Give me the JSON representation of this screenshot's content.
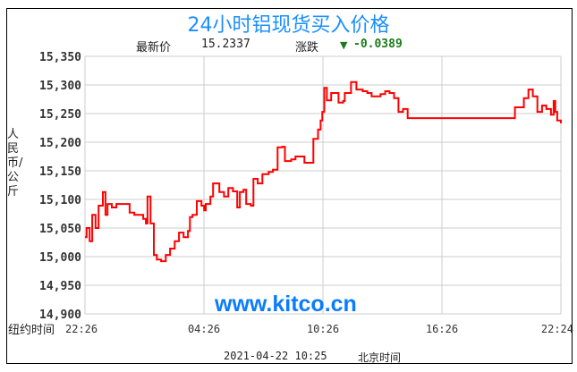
{
  "header": {
    "title": "24小时铝现货买入价格",
    "latest_label": "最新价",
    "latest_value": "15.2337",
    "change_label": "涨跌",
    "change_icon": "triangle-down-icon",
    "change_value": "-0.0389",
    "change_color": "#1a7a1a"
  },
  "footer": {
    "timestamp": "2021-04-22 10:25",
    "timezone": "北京时间"
  },
  "watermark": "www.kitco.cn",
  "chart_data": {
    "type": "line",
    "title": "24小时铝现货买入价格",
    "ylabel": "人民币/公斤",
    "xlabel": "纽约时间",
    "ylim": [
      14900,
      15350
    ],
    "yticks": [
      "15,350",
      "15,300",
      "15,250",
      "15,200",
      "15,150",
      "15,100",
      "15,050",
      "15,000",
      "14,950",
      "14,900"
    ],
    "xticks": [
      "22:26",
      "04:26",
      "10:26",
      "16:26",
      "22:24"
    ],
    "grid": true,
    "line_color": "#ff0000",
    "series": [
      {
        "points": [
          [
            "22:26",
            15034
          ],
          [
            "22:31",
            15050
          ],
          [
            "22:40",
            15027
          ],
          [
            "22:48",
            15073
          ],
          [
            "22:58",
            15050
          ],
          [
            "23:07",
            15089
          ],
          [
            "23:20",
            15113
          ],
          [
            "23:28",
            15073
          ],
          [
            "23:34",
            15092
          ],
          [
            "23:47",
            15086
          ],
          [
            "00:01",
            15092
          ],
          [
            "00:28",
            15092
          ],
          [
            "00:41",
            15077
          ],
          [
            "00:55",
            15073
          ],
          [
            "01:22",
            15066
          ],
          [
            "01:30",
            15058
          ],
          [
            "01:35",
            15105
          ],
          [
            "01:44",
            15058
          ],
          [
            "01:54",
            15003
          ],
          [
            "02:03",
            14995
          ],
          [
            "02:16",
            14992
          ],
          [
            "02:30",
            15003
          ],
          [
            "02:43",
            15014
          ],
          [
            "02:57",
            15027
          ],
          [
            "03:10",
            15042
          ],
          [
            "03:24",
            15034
          ],
          [
            "03:37",
            15045
          ],
          [
            "03:43",
            15069
          ],
          [
            "03:51",
            15073
          ],
          [
            "04:04",
            15097
          ],
          [
            "04:18",
            15089
          ],
          [
            "04:26",
            15081
          ],
          [
            "04:31",
            15092
          ],
          [
            "04:45",
            15105
          ],
          [
            "04:53",
            15128
          ],
          [
            "05:12",
            15113
          ],
          [
            "05:26",
            15105
          ],
          [
            "05:39",
            15120
          ],
          [
            "05:53",
            15114
          ],
          [
            "06:06",
            15086
          ],
          [
            "06:14",
            15113
          ],
          [
            "06:25",
            15117
          ],
          [
            "06:33",
            15092
          ],
          [
            "06:47",
            15089
          ],
          [
            "06:55",
            15136
          ],
          [
            "07:08",
            15128
          ],
          [
            "07:22",
            15144
          ],
          [
            "07:41",
            15148
          ],
          [
            "07:54",
            15152
          ],
          [
            "08:08",
            15191
          ],
          [
            "08:22",
            15192
          ],
          [
            "08:30",
            15167
          ],
          [
            "08:49",
            15170
          ],
          [
            "09:02",
            15175
          ],
          [
            "09:29",
            15164
          ],
          [
            "09:51",
            15164
          ],
          [
            "09:56",
            15206
          ],
          [
            "10:10",
            15222
          ],
          [
            "10:18",
            15238
          ],
          [
            "10:23",
            15253
          ],
          [
            "10:29",
            15295
          ],
          [
            "10:37",
            15273
          ],
          [
            "10:50",
            15286
          ],
          [
            "11:04",
            15286
          ],
          [
            "11:12",
            15269
          ],
          [
            "11:26",
            15272
          ],
          [
            "11:31",
            15286
          ],
          [
            "11:50",
            15305
          ],
          [
            "12:06",
            15292
          ],
          [
            "12:25",
            15289
          ],
          [
            "12:39",
            15286
          ],
          [
            "12:52",
            15280
          ],
          [
            "13:06",
            15280
          ],
          [
            "13:19",
            15284
          ],
          [
            "13:33",
            15289
          ],
          [
            "13:46",
            15286
          ],
          [
            "14:00",
            15277
          ],
          [
            "14:13",
            15253
          ],
          [
            "14:27",
            15258
          ],
          [
            "14:41",
            15242
          ],
          [
            "19:52",
            15242
          ],
          [
            "20:05",
            15261
          ],
          [
            "20:32",
            15277
          ],
          [
            "20:46",
            15292
          ],
          [
            "20:59",
            15280
          ],
          [
            "21:13",
            15253
          ],
          [
            "21:27",
            15264
          ],
          [
            "21:40",
            15258
          ],
          [
            "21:54",
            15248
          ],
          [
            "22:02",
            15272
          ],
          [
            "22:07",
            15253
          ],
          [
            "22:13",
            15238
          ],
          [
            "22:24",
            15233
          ]
        ]
      }
    ]
  }
}
